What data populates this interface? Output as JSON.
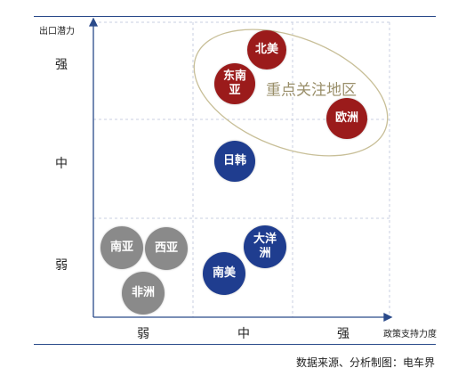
{
  "y_axis_title": "出口潜力",
  "x_axis_title": "政策支持力度",
  "y_levels": [
    "强",
    "中",
    "弱"
  ],
  "x_levels": [
    "弱",
    "中",
    "强"
  ],
  "focus_region_label": "重点关注地区",
  "source": "数据来源、分析制图：电车界",
  "colors": {
    "focus": "#9b1b1b",
    "medium": "#1f3d8f",
    "weak": "#8a8a8a",
    "ellipse": "#c8bf98",
    "grid": "#c8cfe0",
    "axis": "#2a4a8a"
  },
  "regions": [
    {
      "name": "北美",
      "policy": "中-强",
      "potential": "强",
      "group": "focus"
    },
    {
      "name": "东南亚",
      "policy": "中",
      "potential": "强",
      "group": "focus"
    },
    {
      "name": "欧洲",
      "policy": "强",
      "potential": "强-中",
      "group": "focus"
    },
    {
      "name": "日韩",
      "policy": "中",
      "potential": "中",
      "group": "medium"
    },
    {
      "name": "大洋洲",
      "policy": "中",
      "potential": "弱",
      "group": "medium"
    },
    {
      "name": "南美",
      "policy": "中",
      "potential": "弱",
      "group": "medium"
    },
    {
      "name": "南亚",
      "policy": "弱",
      "potential": "弱",
      "group": "weak"
    },
    {
      "name": "西亚",
      "policy": "弱",
      "potential": "弱",
      "group": "weak"
    },
    {
      "name": "非洲",
      "policy": "弱",
      "potential": "弱",
      "group": "weak"
    }
  ]
}
